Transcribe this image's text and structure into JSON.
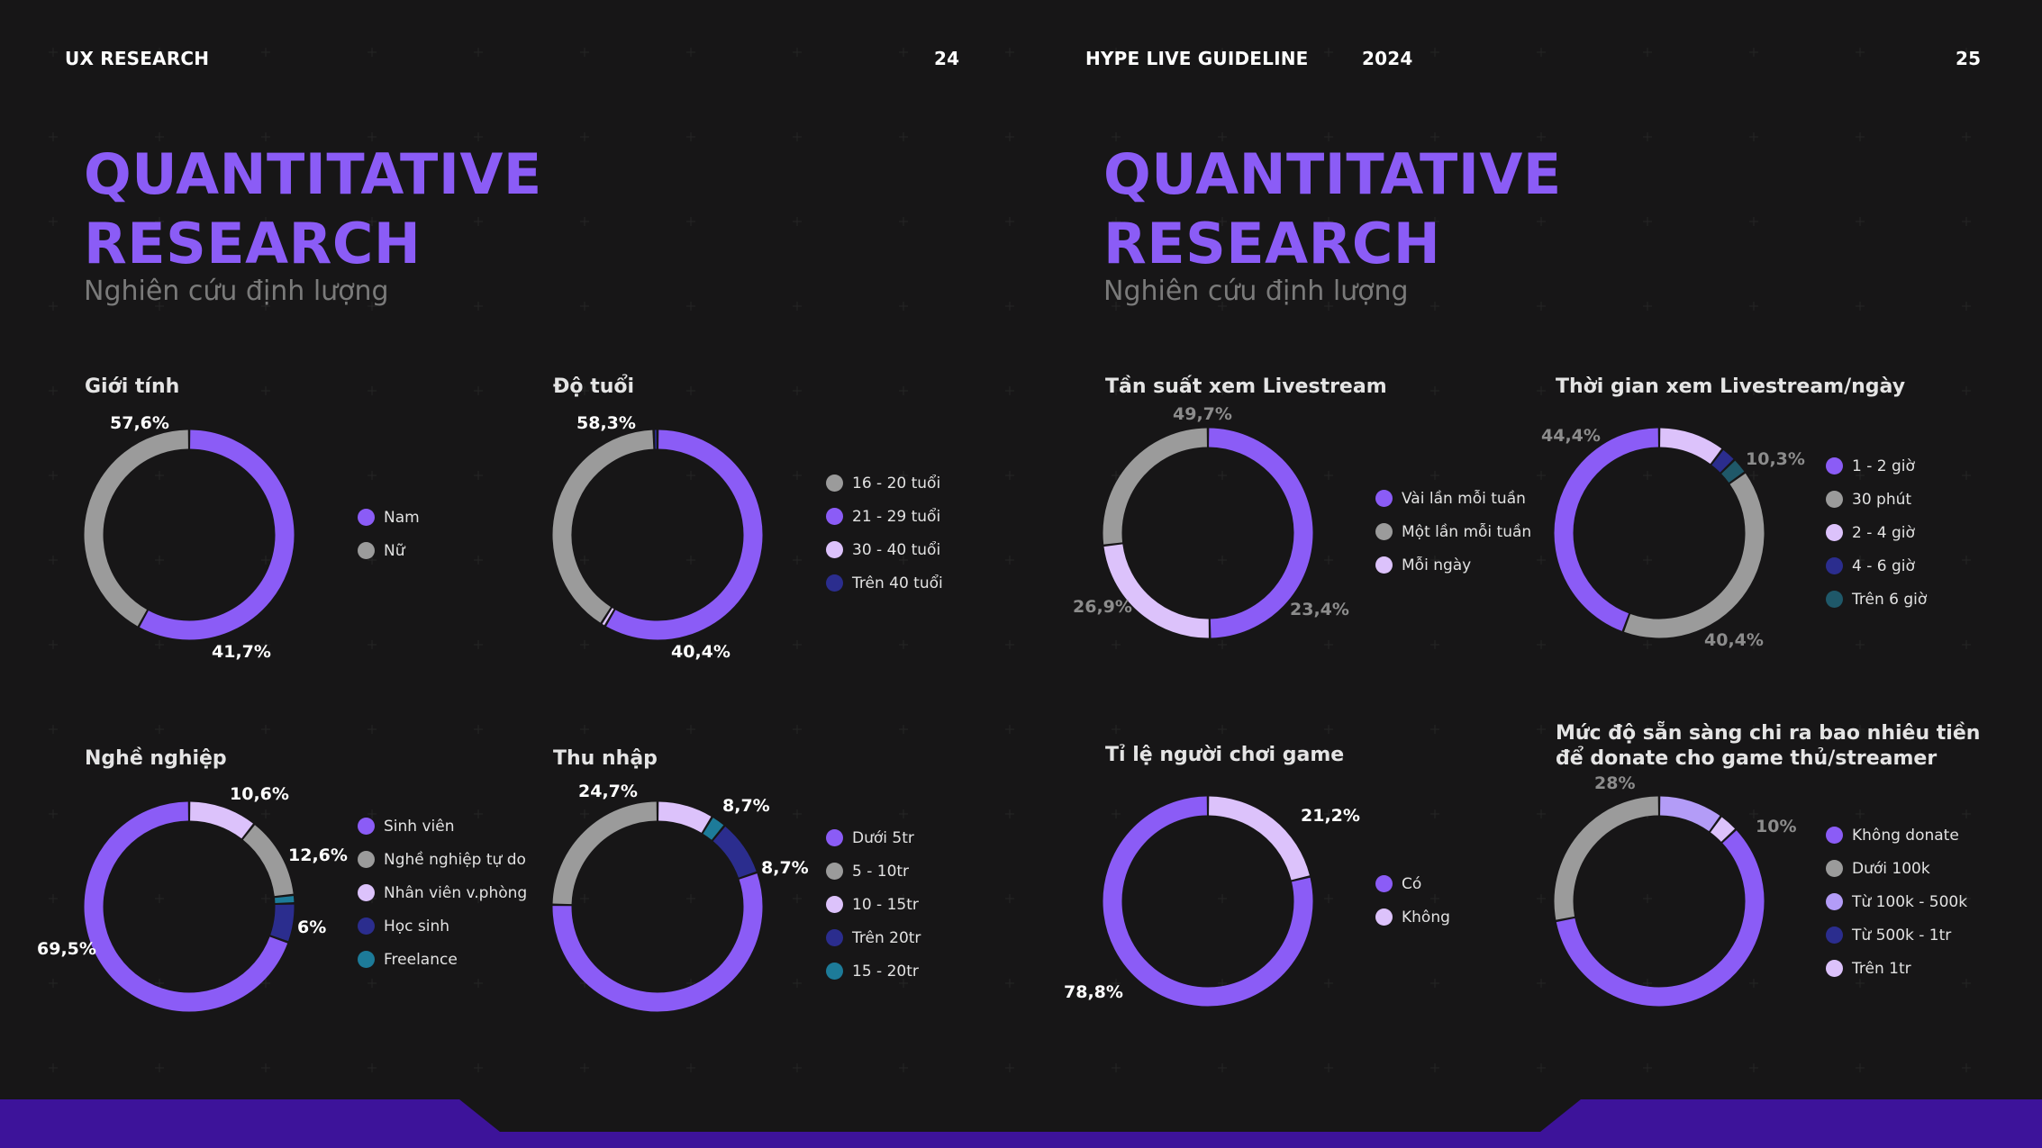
{
  "header": {
    "left_section": "UX RESEARCH",
    "left_page": "24",
    "right_section": "HYPE LIVE GUIDELINE",
    "right_year": "2024",
    "right_page": "25"
  },
  "pages": [
    {
      "title_line1": "QUANTITATIVE",
      "title_line2": "RESEARCH",
      "subtitle": "Nghiên cứu định lượng"
    },
    {
      "title_line1": "QUANTITATIVE",
      "title_line2": "RESEARCH",
      "subtitle": "Nghiên cứu định lượng"
    }
  ],
  "colors": {
    "purple": "#8b5cf6",
    "gray": "#9b9b9b",
    "lavender": "#dcc2fb",
    "navy": "#2b2d8e",
    "teal": "#1d7b99",
    "darkteal": "#1f5869",
    "light_purple": "#b39cf7",
    "footer": "#3d139a"
  },
  "chart_data": [
    {
      "type": "pie",
      "title": "Giới tính",
      "series": [
        {
          "name": "Nam",
          "value": 57.6,
          "color": "#8b5cf6"
        },
        {
          "name": "Nữ",
          "value": 41.7,
          "color": "#9b9b9b"
        }
      ],
      "data_labels": [
        "57,6%",
        "41,7%"
      ]
    },
    {
      "type": "pie",
      "title": "Độ tuổi",
      "series": [
        {
          "name": "21 - 29 tuổi",
          "value": 58.3,
          "color": "#8b5cf6"
        },
        {
          "name": "30 - 40 tuổi",
          "value": 0.7,
          "color": "#dcc2fb"
        },
        {
          "name": "16 - 20 tuổi",
          "value": 40.4,
          "color": "#9b9b9b"
        },
        {
          "name": "Trên 40 tuổi",
          "value": 0.6,
          "color": "#2b2d8e"
        }
      ],
      "legend_order": [
        "16 - 20 tuổi",
        "21 - 29 tuổi",
        "30 - 40 tuổi",
        "Trên 40 tuổi"
      ],
      "data_labels": [
        "58,3%",
        "40,4%"
      ]
    },
    {
      "type": "pie",
      "title": "Nghề nghiệp",
      "series": [
        {
          "name": "Nhân viên v.phòng",
          "value": 10.6,
          "color": "#dcc2fb"
        },
        {
          "name": "Nghề nghiệp tự do",
          "value": 12.6,
          "color": "#9b9b9b"
        },
        {
          "name": "Freelance",
          "value": 1.3,
          "color": "#1d7b99"
        },
        {
          "name": "Học sinh",
          "value": 6,
          "color": "#2b2d8e"
        },
        {
          "name": "Sinh viên",
          "value": 69.5,
          "color": "#8b5cf6"
        }
      ],
      "legend_order": [
        "Sinh viên",
        "Nghề nghiệp tự do",
        "Nhân viên v.phòng",
        "Học sinh",
        "Freelance"
      ],
      "data_labels": [
        "10,6%",
        "12,6%",
        "6%",
        "69,5%"
      ]
    },
    {
      "type": "pie",
      "title": "Thu nhập",
      "series": [
        {
          "name": "10 - 15tr",
          "value": 8.7,
          "color": "#dcc2fb"
        },
        {
          "name": "15 - 20tr",
          "value": 2.3,
          "color": "#1d7b99"
        },
        {
          "name": "Trên 20tr",
          "value": 8.7,
          "color": "#2b2d8e"
        },
        {
          "name": "Dưới 5tr",
          "value": 55.6,
          "color": "#8b5cf6"
        },
        {
          "name": "5 - 10tr",
          "value": 24.7,
          "color": "#9b9b9b"
        }
      ],
      "legend_order": [
        "Dưới 5tr",
        "5 - 10tr",
        "10 - 15tr",
        "Trên 20tr",
        "15 - 20tr"
      ],
      "data_labels": [
        "8,7%",
        "8,7%",
        "24,7%"
      ]
    },
    {
      "type": "pie",
      "title": "Tần suất xem Livestream",
      "series": [
        {
          "name": "Vài lần mỗi tuần",
          "value": 49.7,
          "color": "#8b5cf6"
        },
        {
          "name": "Mỗi ngày",
          "value": 23.4,
          "color": "#dcc2fb"
        },
        {
          "name": "Một lần mỗi tuần",
          "value": 26.9,
          "color": "#9b9b9b"
        }
      ],
      "legend_order": [
        "Vài lần mỗi tuần",
        "Một lần mỗi tuần",
        "Mỗi ngày"
      ],
      "data_labels": [
        "49,7%",
        "23,4%",
        "26,9%"
      ]
    },
    {
      "type": "pie",
      "title": "Thời gian xem Livestream/ngày",
      "series": [
        {
          "name": "2 - 4 giờ",
          "value": 10.3,
          "color": "#dcc2fb"
        },
        {
          "name": "4 - 6 giờ",
          "value": 2.4,
          "color": "#2b2d8e"
        },
        {
          "name": "Trên 6 giờ",
          "value": 2.5,
          "color": "#1f5869"
        },
        {
          "name": "30 phút",
          "value": 40.4,
          "color": "#9b9b9b"
        },
        {
          "name": "1 - 2 giờ",
          "value": 44.4,
          "color": "#8b5cf6"
        }
      ],
      "legend_order": [
        "1 - 2 giờ",
        "30 phút",
        "2 - 4 giờ",
        "4 - 6 giờ",
        "Trên 6 giờ"
      ],
      "data_labels": [
        "10,3%",
        "40,4%",
        "44,4%"
      ]
    },
    {
      "type": "pie",
      "title": "Tỉ lệ người chơi game",
      "series": [
        {
          "name": "Không",
          "value": 21.2,
          "color": "#dcc2fb"
        },
        {
          "name": "Có",
          "value": 78.8,
          "color": "#8b5cf6"
        }
      ],
      "legend_order": [
        "Có",
        "Không"
      ],
      "data_labels": [
        "21,2%",
        "78,8%"
      ]
    },
    {
      "type": "pie",
      "title_line1": "Mức độ sẵn sàng chi ra bao nhiêu tiền",
      "title_line2": "để donate cho game thủ/streamer",
      "series": [
        {
          "name": "Từ 100k - 500k",
          "value": 10,
          "color": "#b39cf7"
        },
        {
          "name": "Trên 1tr",
          "value": 3,
          "color": "#dcc2fb"
        },
        {
          "name": "Không donate",
          "value": 59,
          "color": "#8b5cf6"
        },
        {
          "name": "Dưới 100k",
          "value": 28,
          "color": "#9b9b9b"
        }
      ],
      "legend_order": [
        "Không donate",
        "Dưới 100k",
        "Từ 100k - 500k",
        "Từ 500k - 1tr",
        "Trên 1tr"
      ],
      "legend_colors": [
        "#8b5cf6",
        "#9b9b9b",
        "#b39cf7",
        "#2b2d8e",
        "#dcc2fb"
      ],
      "data_labels": [
        "28%",
        "10%"
      ]
    }
  ]
}
